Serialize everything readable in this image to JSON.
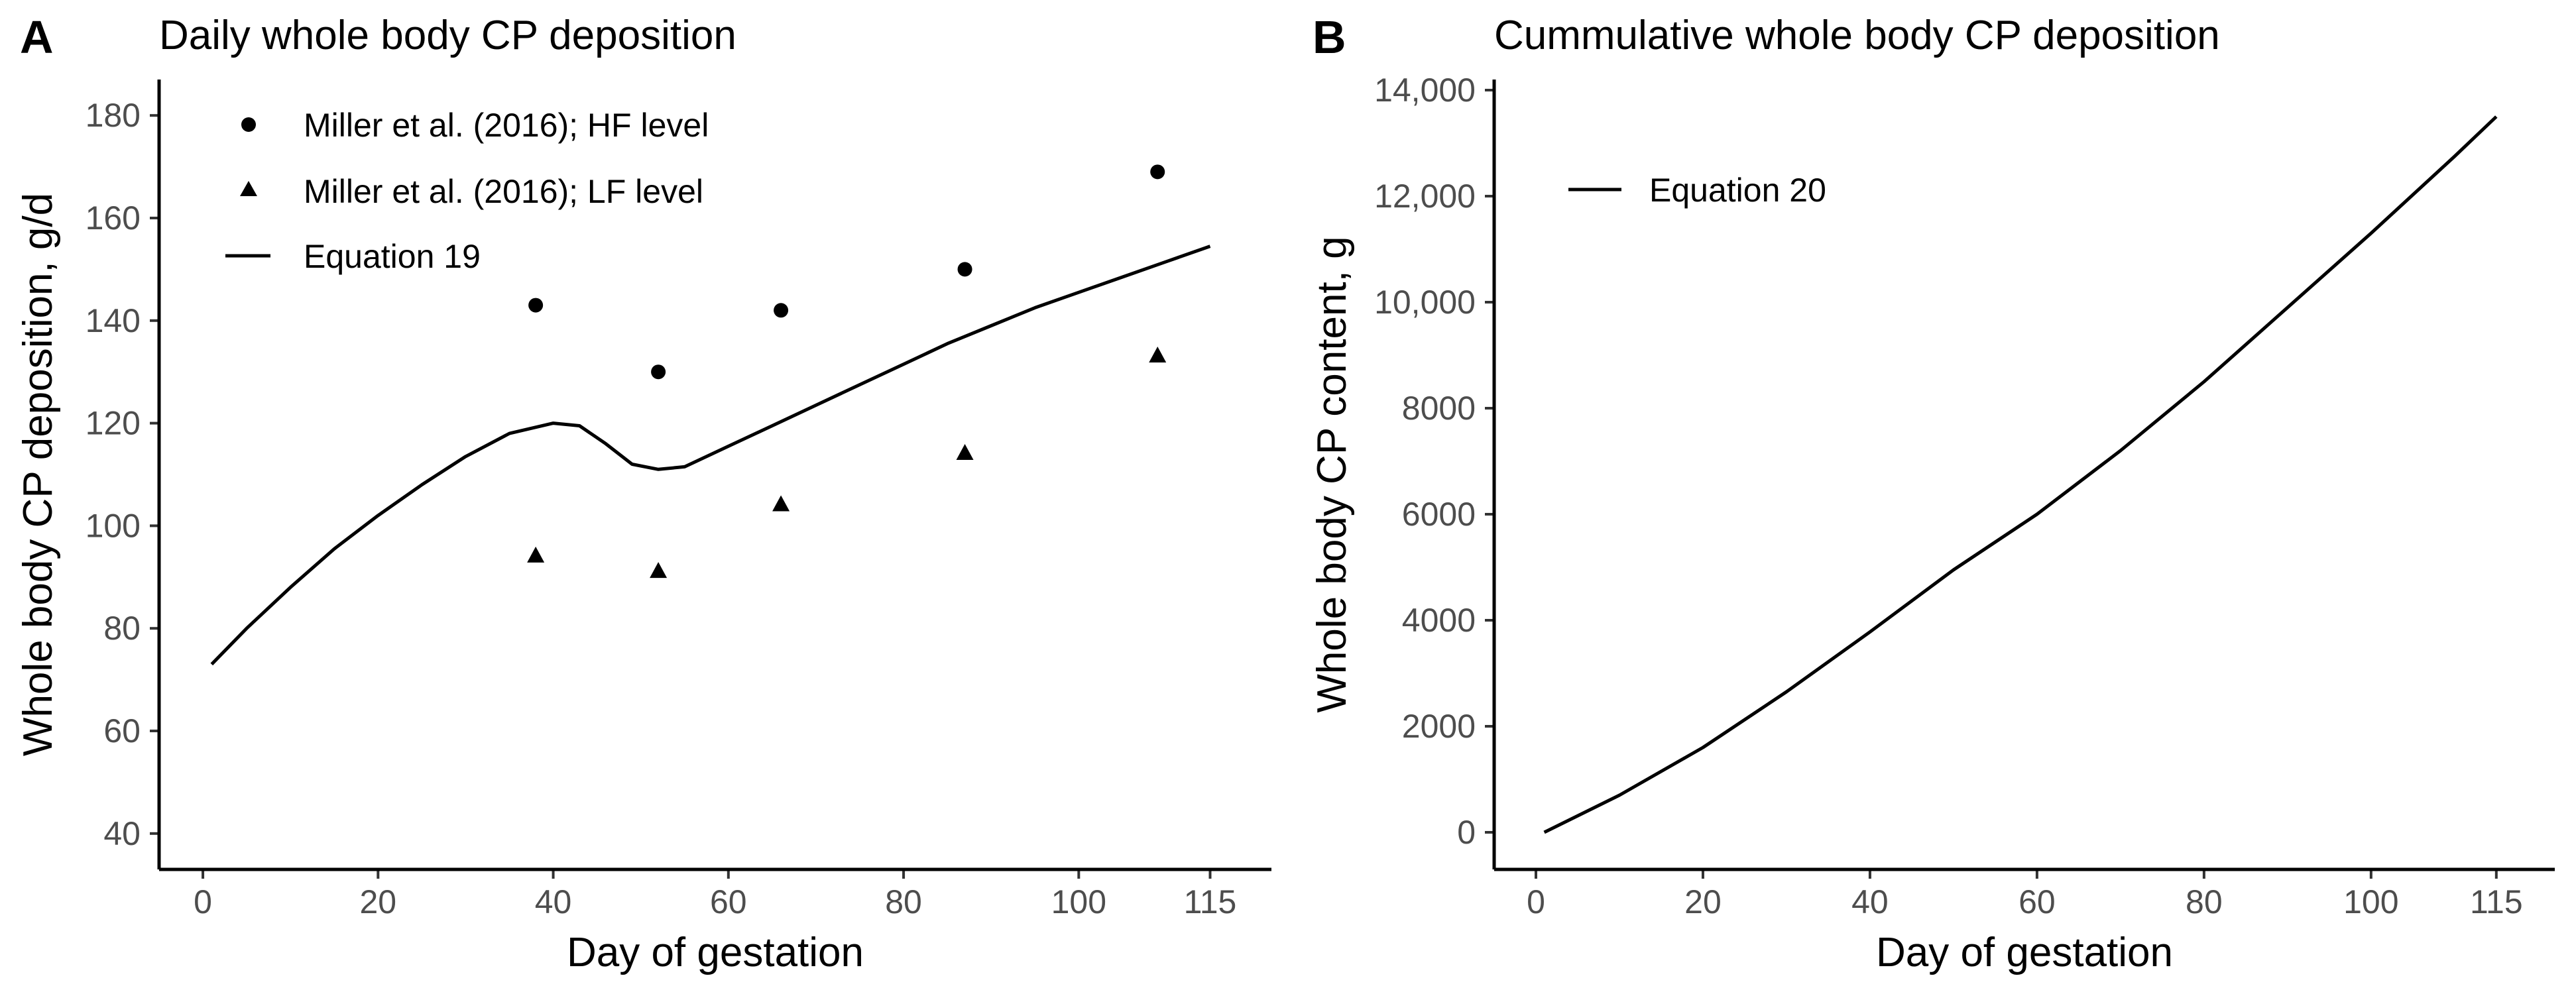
{
  "colors": {
    "ink": "#000000",
    "tick_text": "#4d4d4d",
    "background": "#ffffff"
  },
  "chart_data": [
    {
      "panel": "A",
      "type": "scatter",
      "title": "Daily whole body CP deposition",
      "xlabel": "Day of gestation",
      "ylabel": "Whole body CP deposition, g/d",
      "xlim": [
        -5,
        122
      ],
      "ylim": [
        33,
        187
      ],
      "xticks": [
        0,
        20,
        40,
        60,
        80,
        100,
        115
      ],
      "xtick_labels": [
        "0",
        "20",
        "40",
        "60",
        "80",
        "100",
        "115"
      ],
      "yticks": [
        40,
        60,
        80,
        100,
        120,
        140,
        160,
        180
      ],
      "ytick_labels": [
        "40",
        "60",
        "80",
        "100",
        "120",
        "140",
        "160",
        "180"
      ],
      "series": [
        {
          "name": "Miller et al. (2016); HF level",
          "kind": "points",
          "marker": "circle",
          "x": [
            38,
            52,
            66,
            87,
            109
          ],
          "y": [
            143,
            130,
            142,
            150,
            169
          ]
        },
        {
          "name": "Miller et al. (2016); LF level",
          "kind": "points",
          "marker": "triangle",
          "x": [
            38,
            52,
            66,
            87,
            109
          ],
          "y": [
            94,
            91,
            104,
            114,
            133
          ]
        },
        {
          "name": "Equation 19",
          "kind": "line",
          "x": [
            1,
            5,
            10,
            15,
            20,
            25,
            30,
            35,
            40,
            43,
            46,
            49,
            52,
            55,
            60,
            65,
            70,
            75,
            80,
            85,
            90,
            95,
            100,
            105,
            110,
            115
          ],
          "y": [
            73,
            80,
            88,
            95.5,
            102,
            108,
            113.5,
            118,
            120,
            119.5,
            116,
            112,
            111,
            111.5,
            115.5,
            119.5,
            123.5,
            127.5,
            131.5,
            135.5,
            139,
            142.5,
            145.5,
            148.5,
            151.5,
            154.5
          ]
        }
      ],
      "legend": [
        {
          "label": "Miller et al. (2016); HF level",
          "symbol": "circle"
        },
        {
          "label": "Miller et al. (2016); LF level",
          "symbol": "triangle"
        },
        {
          "label": "Equation 19",
          "symbol": "line"
        }
      ],
      "legend_position": "top-left",
      "grid": false
    },
    {
      "panel": "B",
      "type": "line",
      "title": "Cummulative whole body CP deposition",
      "xlabel": "Day of gestation",
      "ylabel": "Whole body CP content, g",
      "xlim": [
        -5,
        122
      ],
      "ylim": [
        -700,
        14200
      ],
      "xticks": [
        0,
        20,
        40,
        60,
        80,
        100,
        115
      ],
      "xtick_labels": [
        "0",
        "20",
        "40",
        "60",
        "80",
        "100",
        "115"
      ],
      "yticks": [
        0,
        2000,
        4000,
        6000,
        8000,
        10000,
        12000,
        14000
      ],
      "ytick_labels": [
        "0",
        "2000",
        "4000",
        "6000",
        "8000",
        "10,000",
        "12,000",
        "14,000"
      ],
      "series": [
        {
          "name": "Equation 20",
          "kind": "line",
          "x": [
            1,
            10,
            20,
            30,
            40,
            50,
            60,
            70,
            80,
            90,
            100,
            110,
            115
          ],
          "y": [
            0,
            700,
            1600,
            2650,
            3780,
            4950,
            6000,
            7200,
            8500,
            9900,
            11300,
            12750,
            13500
          ]
        }
      ],
      "legend": [
        {
          "label": "Equation 20",
          "symbol": "line"
        }
      ],
      "legend_position": "top-left",
      "grid": false
    }
  ]
}
